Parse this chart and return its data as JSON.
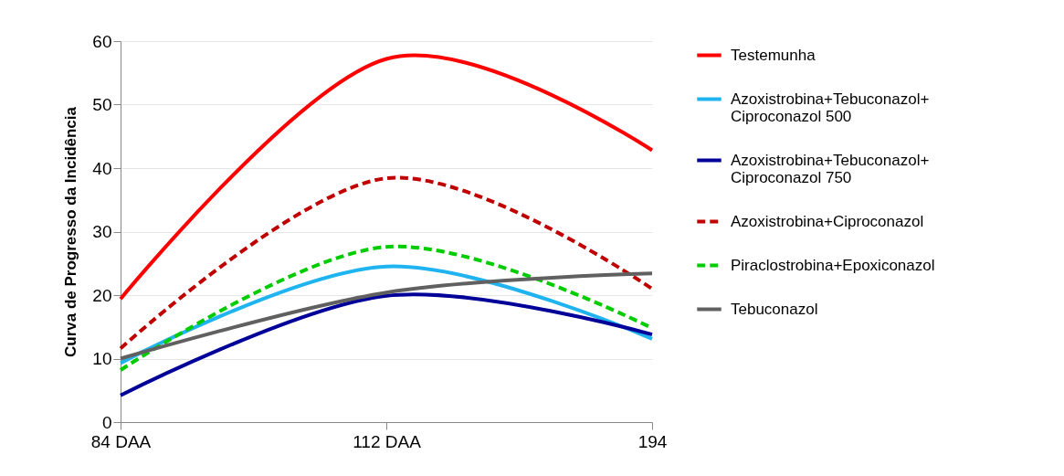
{
  "chart_data": {
    "type": "line",
    "ylabel": "Curva de Progresso da Incidência",
    "categories": [
      "84 DAA",
      "112 DAA",
      "194"
    ],
    "ylim": [
      0,
      60
    ],
    "yticks": [
      0,
      10,
      20,
      30,
      40,
      50,
      60
    ],
    "grid": "y",
    "legend": "right",
    "series": [
      {
        "name": "Testemunha",
        "color": "#ff0000",
        "line_style": "solid",
        "values": [
          19.4,
          57.2,
          42.8
        ]
      },
      {
        "name": "Azoxistrobina+Tebuconazol+ Ciproconazol 500",
        "color": "#1fb4f0",
        "line_style": "solid",
        "values": [
          9.3,
          24.5,
          13.1
        ]
      },
      {
        "name": "Azoxistrobina+Tebuconazol+ Ciproconazol 750",
        "color": "#000099",
        "line_style": "solid",
        "values": [
          4.2,
          19.9,
          13.8
        ]
      },
      {
        "name": "Azoxistrobina+Ciproconazol",
        "color": "#c00000",
        "line_style": "dashed",
        "values": [
          11.6,
          38.4,
          21.0
        ]
      },
      {
        "name": "Piraclostrobina+Epoxiconazol",
        "color": "#00cc00",
        "line_style": "dashed",
        "values": [
          8.2,
          27.6,
          14.8
        ]
      },
      {
        "name": "Tebuconazol",
        "color": "#606060",
        "line_style": "solid",
        "values": [
          10.0,
          20.4,
          23.4
        ]
      }
    ]
  }
}
